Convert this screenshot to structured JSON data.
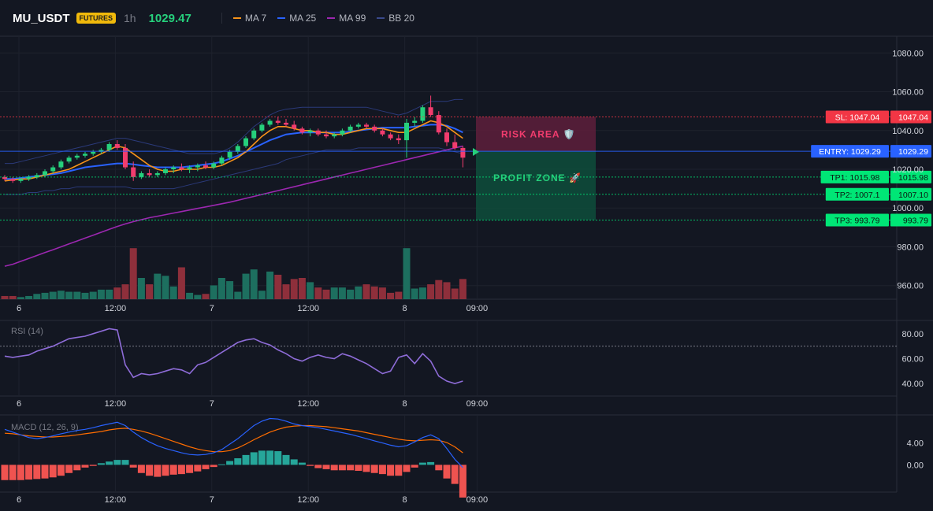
{
  "header": {
    "symbol": "MU_USDT",
    "badge": "FUTURES",
    "timeframe": "1h",
    "price": "1029.47",
    "legend": [
      {
        "name": "MA 7",
        "color": "#f7931a"
      },
      {
        "name": "MA 25",
        "color": "#2962ff"
      },
      {
        "name": "MA 99",
        "color": "#9c27b0"
      },
      {
        "name": "BB 20",
        "color": "#3a4a8c"
      }
    ]
  },
  "chart_data": [
    {
      "type": "candlestick",
      "panel": "price",
      "ylim": [
        955,
        1085
      ],
      "y_ticks": [
        "1080.00",
        "1060.00",
        "1040.00",
        "1020.00",
        "1000.00",
        "980.00",
        "960.00"
      ],
      "x_ticks": [
        {
          "label": "6",
          "i": 0
        },
        {
          "label": "12:00",
          "i": 12
        },
        {
          "label": "7",
          "i": 24
        },
        {
          "label": "12:00",
          "i": 36
        },
        {
          "label": "8",
          "i": 48
        },
        {
          "label": "09:00",
          "i": 57
        }
      ],
      "candles": [
        [
          1016,
          1017,
          1014,
          1015
        ],
        [
          1015,
          1016,
          1013,
          1014
        ],
        [
          1014,
          1015.5,
          1013,
          1015
        ],
        [
          1015,
          1017,
          1014,
          1016
        ],
        [
          1016,
          1018,
          1015,
          1017
        ],
        [
          1017,
          1020,
          1016,
          1019
        ],
        [
          1019,
          1022,
          1018,
          1021
        ],
        [
          1021,
          1025,
          1020,
          1024
        ],
        [
          1024,
          1027,
          1023,
          1026
        ],
        [
          1026,
          1028,
          1025,
          1027
        ],
        [
          1027,
          1029,
          1026,
          1028
        ],
        [
          1028,
          1030,
          1027,
          1029
        ],
        [
          1029,
          1031,
          1028,
          1030
        ],
        [
          1030,
          1034,
          1029,
          1033
        ],
        [
          1033,
          1035,
          1030,
          1031
        ],
        [
          1031,
          1033,
          1020,
          1021
        ],
        [
          1021,
          1024,
          1014,
          1016
        ],
        [
          1016,
          1019,
          1015,
          1018
        ],
        [
          1018,
          1020,
          1016,
          1017
        ],
        [
          1017,
          1019,
          1016,
          1018
        ],
        [
          1018,
          1021,
          1017,
          1020
        ],
        [
          1020,
          1022,
          1018,
          1021
        ],
        [
          1021,
          1023,
          1019,
          1020
        ],
        [
          1020,
          1022,
          1018,
          1021
        ],
        [
          1021,
          1023,
          1019,
          1022
        ],
        [
          1022,
          1024,
          1020,
          1021
        ],
        [
          1021,
          1024,
          1020,
          1023
        ],
        [
          1023,
          1027,
          1022,
          1026
        ],
        [
          1026,
          1030,
          1025,
          1029
        ],
        [
          1029,
          1033,
          1028,
          1032
        ],
        [
          1032,
          1037,
          1031,
          1036
        ],
        [
          1036,
          1041,
          1035,
          1040
        ],
        [
          1040,
          1044,
          1039,
          1043
        ],
        [
          1043,
          1046,
          1042,
          1045
        ],
        [
          1045,
          1047,
          1043,
          1044
        ],
        [
          1044,
          1046,
          1042,
          1043
        ],
        [
          1043,
          1045,
          1040,
          1041
        ],
        [
          1041,
          1042,
          1038,
          1039
        ],
        [
          1039,
          1041,
          1037,
          1040
        ],
        [
          1040,
          1041,
          1037,
          1038
        ],
        [
          1038,
          1040,
          1036,
          1037
        ],
        [
          1037,
          1039,
          1036,
          1038
        ],
        [
          1038,
          1041,
          1037,
          1040
        ],
        [
          1040,
          1043,
          1039,
          1042
        ],
        [
          1042,
          1044,
          1041,
          1043
        ],
        [
          1043,
          1044,
          1041,
          1042
        ],
        [
          1042,
          1043,
          1039,
          1040
        ],
        [
          1040,
          1041,
          1037,
          1038
        ],
        [
          1038,
          1039,
          1035,
          1036
        ],
        [
          1036,
          1038,
          1033,
          1035
        ],
        [
          1035,
          1046,
          1026,
          1044
        ],
        [
          1044,
          1047,
          1042,
          1045
        ],
        [
          1045,
          1053,
          1044,
          1052
        ],
        [
          1052,
          1058,
          1047,
          1048
        ],
        [
          1048,
          1050,
          1038,
          1039
        ],
        [
          1039,
          1041,
          1032,
          1034
        ],
        [
          1034,
          1038,
          1030,
          1031
        ],
        [
          1031,
          1032,
          1021,
          1026
        ]
      ],
      "ma7": [
        1014,
        1014.5,
        1015,
        1015,
        1016,
        1017,
        1018,
        1019,
        1020,
        1022,
        1024,
        1026,
        1028,
        1030,
        1032,
        1031,
        1028,
        1025,
        1022,
        1020,
        1019,
        1019,
        1020,
        1020,
        1020,
        1021,
        1021,
        1022,
        1024,
        1026,
        1029,
        1033,
        1037,
        1040,
        1042,
        1042,
        1041,
        1040,
        1040,
        1039,
        1039,
        1038,
        1038,
        1039,
        1040,
        1041,
        1041,
        1041,
        1040,
        1039,
        1039,
        1041,
        1043,
        1045,
        1044,
        1042,
        1039,
        1036
      ],
      "ma25": [
        1015,
        1015,
        1015.5,
        1016,
        1016.5,
        1017,
        1017.5,
        1018,
        1019,
        1020,
        1021,
        1021.5,
        1022,
        1022.5,
        1023,
        1023,
        1022.5,
        1022,
        1021.5,
        1021,
        1021,
        1021,
        1021,
        1021.5,
        1022,
        1022.5,
        1023,
        1024,
        1025.5,
        1027,
        1029,
        1031,
        1033,
        1035,
        1036.5,
        1038,
        1038.5,
        1039,
        1039,
        1039,
        1039,
        1039,
        1039,
        1039.5,
        1040,
        1040.5,
        1041,
        1041.5,
        1041.5,
        1041.5,
        1041.5,
        1042,
        1042.5,
        1043,
        1043,
        1042.5,
        1041,
        1039
      ],
      "ma99": [
        970,
        971,
        972.5,
        974,
        975.5,
        977,
        978.5,
        980,
        981.5,
        983,
        984.5,
        986,
        987.5,
        989,
        990.5,
        991.8,
        993,
        994,
        995,
        995.8,
        996.6,
        997.4,
        998.2,
        999,
        999.8,
        1000.6,
        1001.4,
        1002.2,
        1003,
        1004,
        1005,
        1006,
        1007,
        1008,
        1009,
        1010,
        1011,
        1012,
        1013,
        1014,
        1015,
        1016,
        1017,
        1018,
        1019,
        1020,
        1021,
        1022,
        1023,
        1024,
        1025,
        1026,
        1027,
        1028,
        1029,
        1030,
        1031,
        1032
      ],
      "bb_upper": [
        1023,
        1023,
        1024,
        1025,
        1026,
        1027,
        1028,
        1029,
        1030,
        1031,
        1032,
        1033,
        1034,
        1035,
        1036,
        1036,
        1035,
        1034,
        1033,
        1032,
        1031,
        1030,
        1029,
        1028,
        1028,
        1028,
        1028,
        1029,
        1031,
        1034,
        1038,
        1042,
        1045,
        1048,
        1050,
        1051,
        1051.5,
        1052,
        1052,
        1052,
        1052,
        1052,
        1052,
        1052,
        1052,
        1052,
        1051,
        1050,
        1049,
        1048,
        1049,
        1051,
        1053,
        1055,
        1055,
        1055,
        1056,
        1056
      ],
      "bb_lower": [
        1007,
        1007,
        1007,
        1008,
        1008,
        1009,
        1009,
        1010,
        1010,
        1011,
        1011,
        1011,
        1011,
        1011,
        1011,
        1011,
        1010,
        1010,
        1010,
        1010,
        1010,
        1010,
        1011,
        1012,
        1013,
        1014,
        1015,
        1016,
        1017,
        1018,
        1019,
        1020,
        1021,
        1022,
        1023,
        1025,
        1026,
        1027,
        1028,
        1029,
        1030,
        1030,
        1030,
        1030,
        1031,
        1031,
        1031,
        1031,
        1031,
        1031,
        1031,
        1031,
        1031,
        1031,
        1031,
        1030,
        1029,
        1028
      ],
      "volume": [
        3,
        3,
        2,
        3,
        5,
        6,
        7,
        8,
        7,
        7,
        6,
        7,
        9,
        9,
        11,
        14,
        48,
        20,
        14,
        24,
        22,
        12,
        30,
        6,
        4,
        5,
        13,
        20,
        17,
        7,
        24,
        28,
        8,
        26,
        23,
        14,
        19,
        20,
        16,
        11,
        9,
        11,
        11,
        9,
        12,
        14,
        12,
        11,
        6,
        7,
        48,
        10,
        11,
        14,
        18,
        16,
        10,
        19
      ],
      "levels": [
        {
          "label": "SL: 1047.04",
          "value_text": "1047.04",
          "value": 1047.04,
          "color": "#f23645"
        },
        {
          "label": "ENTRY: 1029.29",
          "value_text": "1029.29",
          "value": 1029.29,
          "color": "#2962ff"
        },
        {
          "label": "TP1: 1015.98",
          "value_text": "1015.98",
          "value": 1015.98,
          "color": "#00e676"
        },
        {
          "label": "TP2: 1007.1",
          "value_text": "1007.10",
          "value": 1007.1,
          "color": "#00e676"
        },
        {
          "label": "TP3: 993.79",
          "value_text": "993.79",
          "value": 993.79,
          "color": "#00e676"
        }
      ],
      "zones": {
        "risk": "RISK AREA 🛡️",
        "profit": "PROFIT ZONE 🚀"
      }
    },
    {
      "type": "line",
      "panel": "rsi",
      "title": "RSI (14)",
      "ylim": [
        30,
        90
      ],
      "y_ticks": [
        "80.00",
        "60.00",
        "40.00"
      ],
      "overbought": 70,
      "values": [
        62,
        61,
        62,
        63,
        66,
        68,
        70,
        73,
        76,
        77,
        78,
        80,
        82,
        84,
        83,
        55,
        45,
        48,
        47,
        48,
        50,
        52,
        51,
        48,
        55,
        57,
        61,
        65,
        69,
        73,
        75,
        76,
        73,
        71,
        67,
        64,
        60,
        58,
        61,
        63,
        61,
        60,
        64,
        62,
        59,
        56,
        52,
        48,
        50,
        61,
        63,
        56,
        64,
        58,
        46,
        42,
        40,
        42
      ],
      "x_ticks": [
        {
          "label": "6",
          "i": 0
        },
        {
          "label": "12:00",
          "i": 12
        },
        {
          "label": "7",
          "i": 24
        },
        {
          "label": "12:00",
          "i": 36
        },
        {
          "label": "8",
          "i": 48
        },
        {
          "label": "09:00",
          "i": 57
        }
      ]
    },
    {
      "type": "bar",
      "panel": "macd",
      "title": "MACD (12, 26, 9)",
      "ylim": [
        -5,
        9
      ],
      "y_ticks": [
        "4.00",
        "0.00"
      ],
      "macd": [
        6.5,
        6.0,
        5.5,
        5.0,
        4.8,
        5.0,
        5.3,
        5.7,
        6.0,
        6.3,
        6.5,
        6.8,
        7.2,
        7.5,
        7.8,
        7.2,
        6.0,
        5.0,
        4.2,
        3.5,
        3.0,
        2.6,
        2.2,
        1.9,
        1.8,
        1.9,
        2.2,
        2.8,
        3.8,
        4.8,
        6.0,
        7.2,
        8.0,
        8.5,
        8.4,
        8.0,
        7.5,
        7.2,
        7.0,
        6.8,
        6.5,
        6.2,
        5.9,
        5.6,
        5.2,
        4.8,
        4.4,
        4.0,
        3.6,
        3.3,
        3.5,
        4.2,
        5.0,
        5.5,
        4.8,
        3.0,
        1.0,
        -0.5
      ],
      "signal": [
        5.8,
        5.7,
        5.5,
        5.3,
        5.2,
        5.1,
        5.1,
        5.2,
        5.3,
        5.5,
        5.7,
        5.9,
        6.1,
        6.4,
        6.6,
        6.7,
        6.5,
        6.2,
        5.8,
        5.3,
        4.8,
        4.3,
        3.8,
        3.3,
        2.9,
        2.6,
        2.4,
        2.4,
        2.6,
        3.1,
        3.8,
        4.6,
        5.3,
        6.0,
        6.5,
        6.9,
        7.1,
        7.2,
        7.2,
        7.1,
        7.0,
        6.8,
        6.6,
        6.4,
        6.2,
        5.9,
        5.6,
        5.3,
        5.0,
        4.7,
        4.5,
        4.4,
        4.5,
        4.6,
        4.5,
        4.1,
        3.3,
        2.2
      ],
      "histogram": [
        -2.8,
        -2.8,
        -2.8,
        -2.7,
        -2.6,
        -2.5,
        -2.3,
        -2.0,
        -1.5,
        -1.0,
        -0.5,
        -0.2,
        0.3,
        0.6,
        0.9,
        0.9,
        -0.5,
        -1.5,
        -2.0,
        -2.2,
        -2.0,
        -1.8,
        -1.7,
        -1.5,
        -1.2,
        -0.8,
        -0.4,
        0.1,
        0.7,
        1.2,
        1.8,
        2.3,
        2.6,
        2.6,
        2.5,
        1.8,
        1.0,
        0.4,
        -0.2,
        -0.6,
        -0.8,
        -1.0,
        -1.0,
        -1.0,
        -1.1,
        -1.3,
        -1.5,
        -1.7,
        -2.0,
        -2.0,
        -1.3,
        -0.5,
        0.4,
        0.5,
        -1.0,
        -2.5,
        -3.5,
        -6.0
      ],
      "x_ticks": [
        {
          "label": "6",
          "i": 0
        },
        {
          "label": "12:00",
          "i": 12
        },
        {
          "label": "7",
          "i": 24
        },
        {
          "label": "12:00",
          "i": 36
        },
        {
          "label": "8",
          "i": 48
        },
        {
          "label": "09:00",
          "i": 57
        }
      ]
    }
  ]
}
